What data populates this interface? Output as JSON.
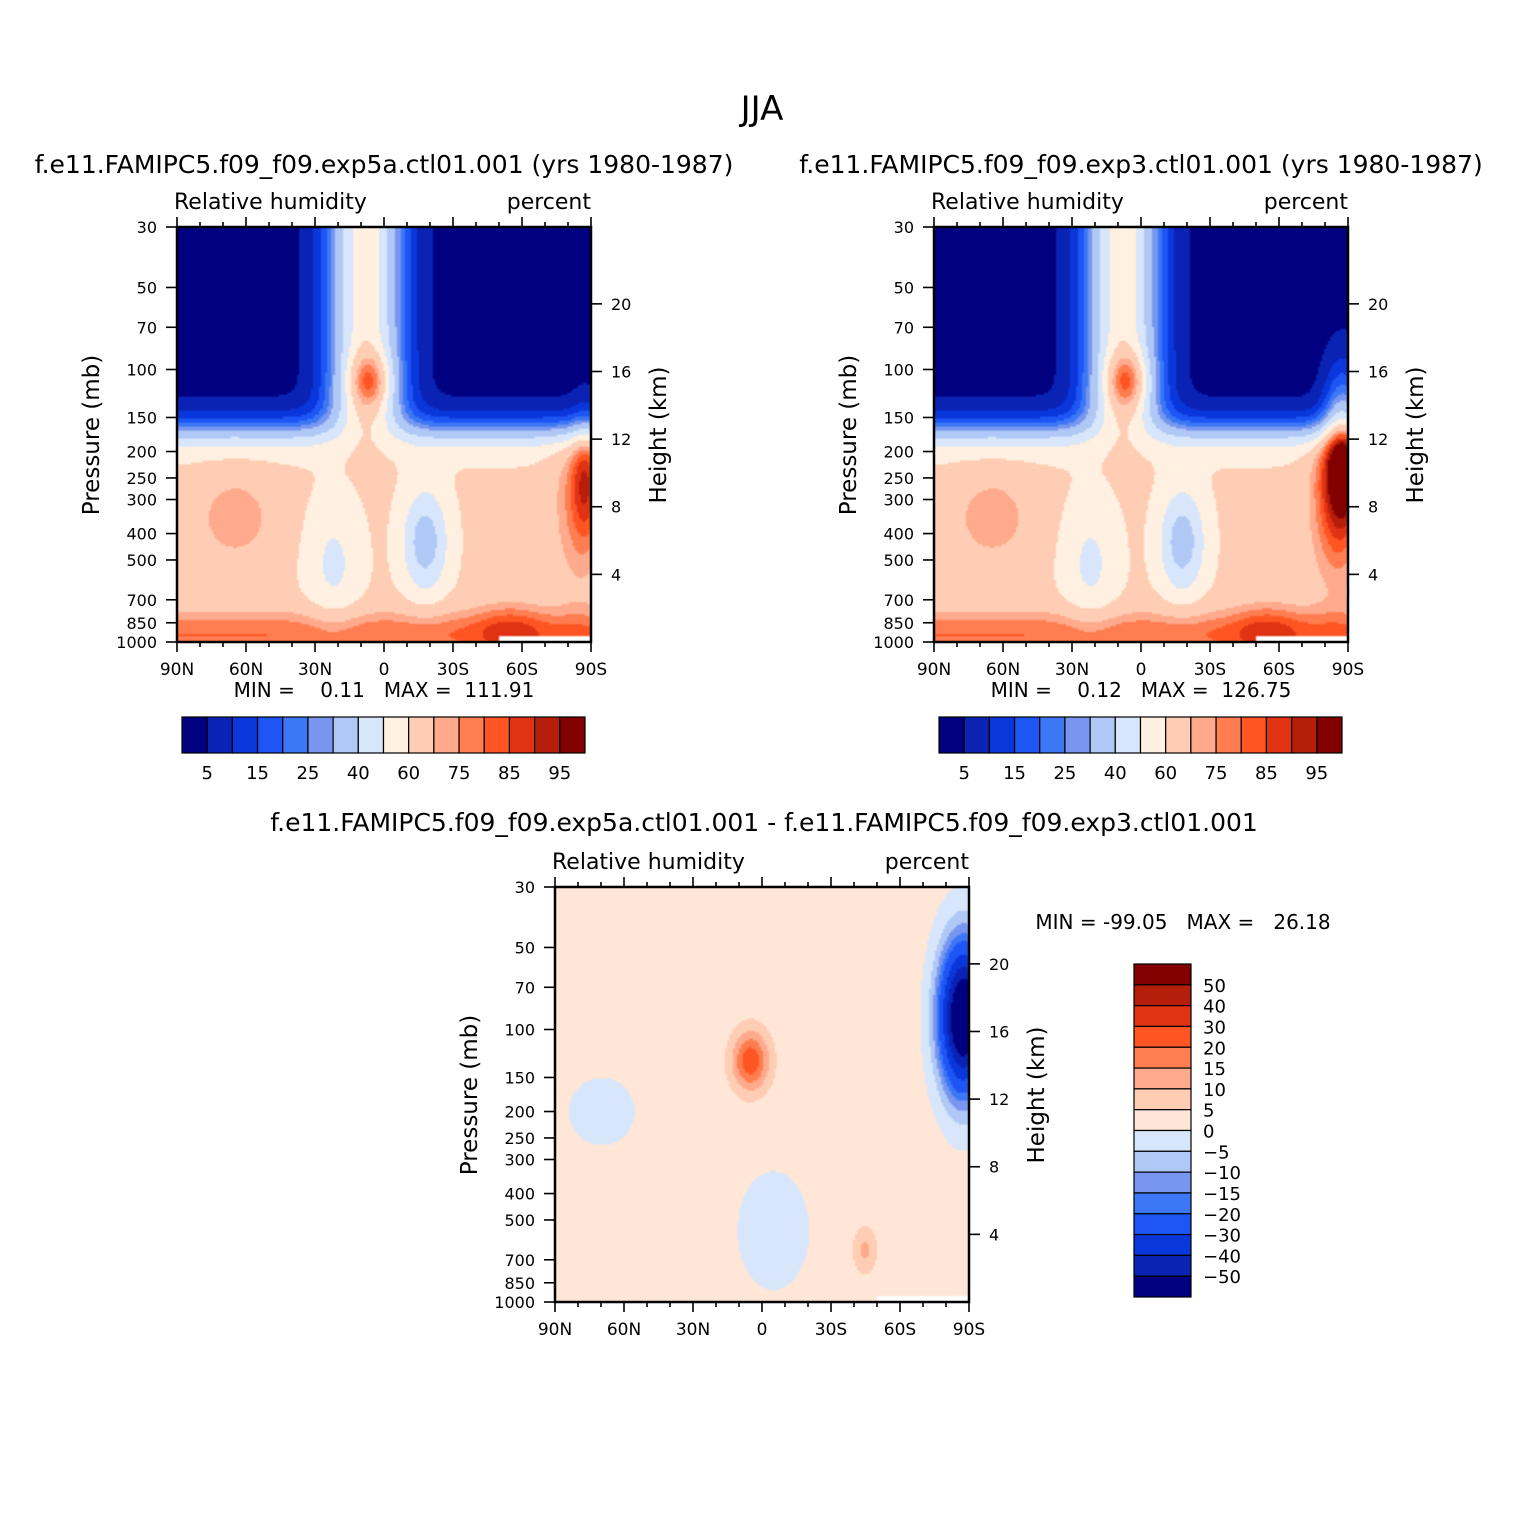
{
  "figure_title": "JJA",
  "colors": {
    "rh_levels": [
      "#000080",
      "#0a23b4",
      "#0a37dc",
      "#1e55f5",
      "#3c78f5",
      "#7896f0",
      "#afc8f5",
      "#d7e6fa",
      "#fff0e1",
      "#ffcdb4",
      "#ffaa8c",
      "#ff7d50",
      "#ff5523",
      "#e13214",
      "#b41e0a",
      "#820000"
    ],
    "diff_levels": [
      "#000080",
      "#0a23b4",
      "#0a37dc",
      "#1e55f5",
      "#3c78f5",
      "#7896f0",
      "#afc8f5",
      "#d7e6fa",
      "#ffe6d7",
      "#ffcdb4",
      "#ffaa8c",
      "#ff7d50",
      "#ff5523",
      "#e13214",
      "#b41e0a",
      "#820000"
    ],
    "missing": "#ffffff"
  },
  "chart_data": [
    {
      "type": "heatmap",
      "title": "f.e11.FAMIPC5.f09_f09.exp5a.ctl01.001 (yrs 1980-1987)",
      "left_subtitle": "Relative humidity",
      "right_subtitle": "percent",
      "ylabel": "Pressure (mb)",
      "ylabel_right": "Height (km)",
      "x_tick_labels": [
        "90N",
        "60N",
        "30N",
        "0",
        "30S",
        "60S",
        "90S"
      ],
      "x_tick_values": [
        90,
        60,
        30,
        0,
        -30,
        -60,
        -90
      ],
      "y_tick_labels": [
        "30",
        "50",
        "70",
        "100",
        "150",
        "200",
        "250",
        "300",
        "400",
        "500",
        "700",
        "850",
        "1000"
      ],
      "y_tick_values": [
        30,
        50,
        70,
        100,
        150,
        200,
        250,
        300,
        400,
        500,
        700,
        850,
        1000
      ],
      "yright_tick_labels": [
        "20",
        "16",
        "12",
        "8",
        "4"
      ],
      "yright_tick_values": [
        20,
        16,
        12,
        8,
        4
      ],
      "xlim": [
        90,
        -90
      ],
      "ylim": [
        1000,
        30
      ],
      "stats_text": "MIN =    0.11   MAX =  111.91",
      "min": 0.11,
      "max": 111.91,
      "colorbar_labels": [
        "5",
        "15",
        "25",
        "40",
        "60",
        "75",
        "85",
        "95"
      ],
      "colorbar_levels": [
        5,
        10,
        15,
        20,
        25,
        30,
        40,
        50,
        60,
        70,
        75,
        80,
        85,
        90,
        95
      ],
      "fields": {
        "upper_cap": "partial",
        "antarctic_upper": "high",
        "ant_orange": 1.0
      }
    },
    {
      "type": "heatmap",
      "title": "f.e11.FAMIPC5.f09_f09.exp3.ctl01.001 (yrs 1980-1987)",
      "left_subtitle": "Relative humidity",
      "right_subtitle": "percent",
      "ylabel": "Pressure (mb)",
      "ylabel_right": "Height (km)",
      "x_tick_labels": [
        "90N",
        "60N",
        "30N",
        "0",
        "30S",
        "60S",
        "90S"
      ],
      "x_tick_values": [
        90,
        60,
        30,
        0,
        -30,
        -60,
        -90
      ],
      "y_tick_labels": [
        "30",
        "50",
        "70",
        "100",
        "150",
        "200",
        "250",
        "300",
        "400",
        "500",
        "700",
        "850",
        "1000"
      ],
      "y_tick_values": [
        30,
        50,
        70,
        100,
        150,
        200,
        250,
        300,
        400,
        500,
        700,
        850,
        1000
      ],
      "yright_tick_labels": [
        "20",
        "16",
        "12",
        "8",
        "4"
      ],
      "yright_tick_values": [
        20,
        16,
        12,
        8,
        4
      ],
      "xlim": [
        90,
        -90
      ],
      "ylim": [
        1000,
        30
      ],
      "stats_text": "MIN =    0.12   MAX =  126.75",
      "min": 0.12,
      "max": 126.75,
      "colorbar_labels": [
        "5",
        "15",
        "25",
        "40",
        "60",
        "75",
        "85",
        "95"
      ],
      "colorbar_levels": [
        5,
        10,
        15,
        20,
        25,
        30,
        40,
        50,
        60,
        70,
        75,
        80,
        85,
        90,
        95
      ],
      "fields": {
        "upper_cap": "weaker",
        "antarctic_upper": "very-high",
        "ant_orange": 1.3
      }
    },
    {
      "type": "heatmap",
      "title": "f.e11.FAMIPC5.f09_f09.exp5a.ctl01.001 - f.e11.FAMIPC5.f09_f09.exp3.ctl01.001",
      "left_subtitle": "Relative humidity",
      "right_subtitle": "percent",
      "ylabel": "Pressure (mb)",
      "ylabel_right": "Height (km)",
      "x_tick_labels": [
        "90N",
        "60N",
        "30N",
        "0",
        "30S",
        "60S",
        "90S"
      ],
      "x_tick_values": [
        90,
        60,
        30,
        0,
        -30,
        -60,
        -90
      ],
      "y_tick_labels": [
        "30",
        "50",
        "70",
        "100",
        "150",
        "200",
        "250",
        "300",
        "400",
        "500",
        "700",
        "850",
        "1000"
      ],
      "y_tick_values": [
        30,
        50,
        70,
        100,
        150,
        200,
        250,
        300,
        400,
        500,
        700,
        850,
        1000
      ],
      "yright_tick_labels": [
        "20",
        "16",
        "12",
        "8",
        "4"
      ],
      "yright_tick_values": [
        20,
        16,
        12,
        8,
        4
      ],
      "xlim": [
        90,
        -90
      ],
      "ylim": [
        1000,
        30
      ],
      "stats_text": "MIN = -99.05   MAX =   26.18",
      "min": -99.05,
      "max": 26.18,
      "colorbar_labels": [
        "50",
        "40",
        "30",
        "20",
        "15",
        "10",
        "5",
        "0",
        "-5",
        "-10",
        "-15",
        "-20",
        "-30",
        "-40",
        "-50"
      ],
      "colorbar_levels": [
        -50,
        -40,
        -30,
        -20,
        -15,
        -10,
        -5,
        0,
        5,
        10,
        15,
        20,
        30,
        40,
        50
      ]
    }
  ]
}
